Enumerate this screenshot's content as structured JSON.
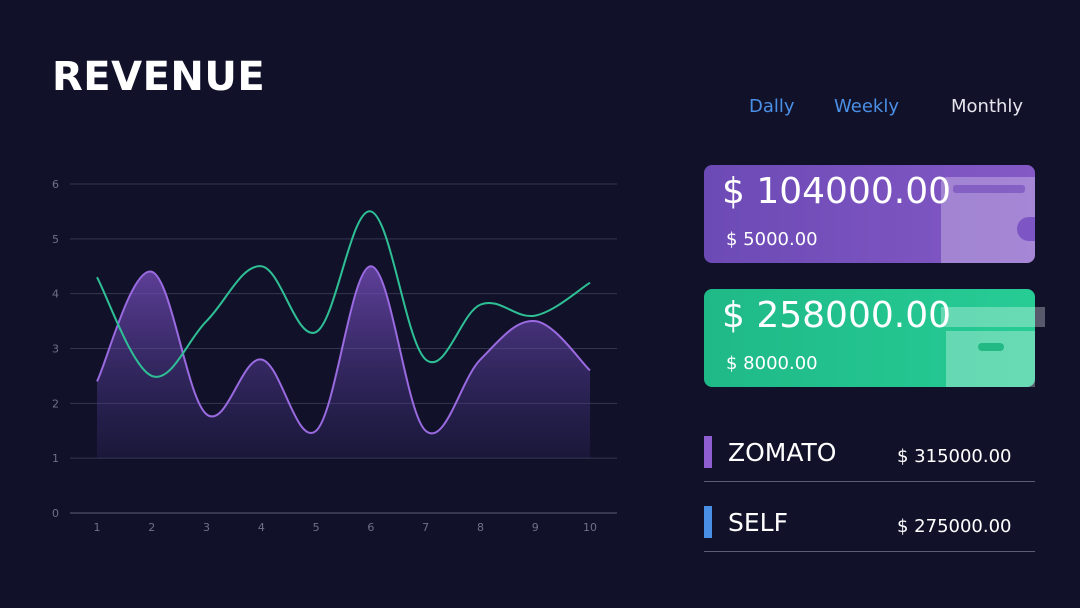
{
  "title": "REVENUE",
  "tabs": {
    "daily": "Dally",
    "weekly": "Weekly",
    "monthly": "Monthly"
  },
  "cards": [
    {
      "amount": "$ 104000.00",
      "sub": "$ 5000.00",
      "icon": "wallet-icon",
      "color": "#7d55c4"
    },
    {
      "amount": "$ 258000.00",
      "sub": "$ 8000.00",
      "icon": "box-icon",
      "color": "#22c48e"
    }
  ],
  "legend": [
    {
      "name": "ZOMATO",
      "amount": "$ 315000.00",
      "color": "#8f5fd1"
    },
    {
      "name": "SELF",
      "amount": "$ 275000.00",
      "color": "#4a8fe6"
    }
  ],
  "chart_data": {
    "type": "line",
    "x": [
      1,
      2,
      3,
      4,
      5,
      6,
      7,
      8,
      9,
      10
    ],
    "series": [
      {
        "values": [
          2.4,
          4.4,
          1.8,
          2.8,
          1.5,
          4.5,
          1.5,
          2.8,
          3.5,
          2.6
        ],
        "color": "#9a6ae0",
        "style": "area"
      },
      {
        "values": [
          4.3,
          2.5,
          3.5,
          4.5,
          3.3,
          5.5,
          2.8,
          3.8,
          3.6,
          4.2
        ],
        "color": "#2fbf95",
        "style": "line"
      }
    ],
    "xticks": [
      "1",
      "2",
      "3",
      "4",
      "5",
      "6",
      "7",
      "8",
      "9",
      "10"
    ],
    "yticks": [
      "0",
      "1",
      "2",
      "3",
      "4",
      "5",
      "6"
    ],
    "ylim": [
      0,
      6
    ],
    "grid": true
  }
}
